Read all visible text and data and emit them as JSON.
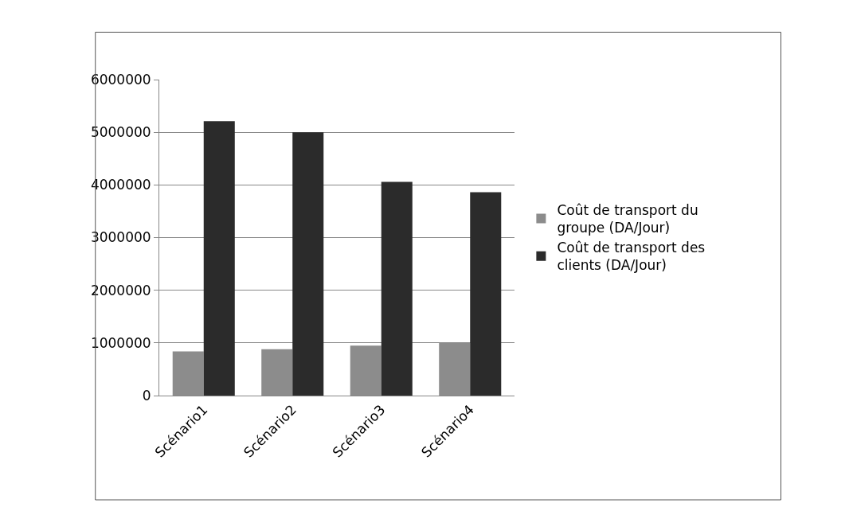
{
  "chart_data": {
    "type": "bar",
    "categories": [
      "Scénario1",
      "Scénario2",
      "Scénario3",
      "Scénario4"
    ],
    "series": [
      {
        "name": "Coût de transport du groupe (DA/Jour)",
        "color": "#8c8c8c",
        "values": [
          840000,
          880000,
          950000,
          1010000
        ]
      },
      {
        "name": "Coût de transport des clients (DA/Jour)",
        "color": "#2b2b2b",
        "values": [
          5210000,
          5000000,
          4060000,
          3860000
        ]
      }
    ],
    "ylim": [
      0,
      6000000
    ],
    "yticks": [
      0,
      1000000,
      2000000,
      3000000,
      4000000,
      5000000,
      6000000
    ],
    "grid": "y",
    "legend": "right"
  }
}
